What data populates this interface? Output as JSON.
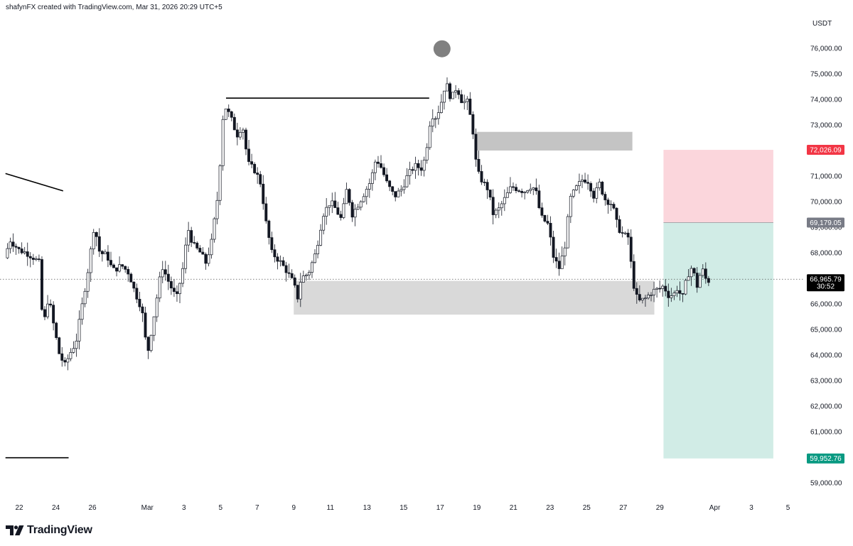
{
  "header": {
    "text": "shafynFX created with TradingView.com, Mar 31, 2026 20:29 UTC+5"
  },
  "footer": {
    "brand": "TradingView"
  },
  "chart_data": {
    "type": "candlestick",
    "currency_label": "USDT",
    "y_ticks": [
      76000,
      75000,
      74000,
      73000,
      72000,
      71000,
      70000,
      69000,
      68000,
      67000,
      66000,
      65000,
      64000,
      63000,
      62000,
      61000,
      59000
    ],
    "y_tick_labels": [
      "76,000.00",
      "75,000.00",
      "74,000.00",
      "73,000.00",
      "72,000.00",
      "71,000.00",
      "70,000.00",
      "69,000.00",
      "68,000.00",
      "67,000.00",
      "66,000.00",
      "65,000.00",
      "64,000.00",
      "63,000.00",
      "62,000.00",
      "61,000.00",
      "59,000.00"
    ],
    "x_ticks": [
      {
        "day": 0,
        "label": "22"
      },
      {
        "day": 2,
        "label": "24"
      },
      {
        "day": 4,
        "label": "26"
      },
      {
        "day": 7,
        "label": "Mar"
      },
      {
        "day": 9,
        "label": "3"
      },
      {
        "day": 11,
        "label": "5"
      },
      {
        "day": 13,
        "label": "7"
      },
      {
        "day": 15,
        "label": "9"
      },
      {
        "day": 17,
        "label": "11"
      },
      {
        "day": 19,
        "label": "13"
      },
      {
        "day": 21,
        "label": "15"
      },
      {
        "day": 23,
        "label": "17"
      },
      {
        "day": 25,
        "label": "19"
      },
      {
        "day": 27,
        "label": "21"
      },
      {
        "day": 29,
        "label": "23"
      },
      {
        "day": 31,
        "label": "25"
      },
      {
        "day": 33,
        "label": "27"
      },
      {
        "day": 35,
        "label": "29"
      },
      {
        "day": 38,
        "label": "Apr"
      },
      {
        "day": 40,
        "label": "3"
      },
      {
        "day": 42,
        "label": "5"
      }
    ],
    "current_price": {
      "value": 66965.79,
      "label": "66,965.79",
      "countdown": "30:52"
    },
    "price_tags": [
      {
        "value": 72026.09,
        "label": "72,026.09",
        "color": "#f23645"
      },
      {
        "value": 69179.05,
        "label": "69,179.05",
        "color": "#787b86"
      },
      {
        "value": 59952.76,
        "label": "59,952.76",
        "color": "#089981"
      }
    ],
    "position": {
      "stop": 72026.09,
      "entry": 69179.05,
      "target": 59952.76,
      "start_day": 35.2,
      "end_day": 41.2,
      "stop_color": "#fbd6dc",
      "target_color": "#d1ece6"
    },
    "zones": [
      {
        "day_from": 15.0,
        "day_to": 34.7,
        "high": 66900,
        "low": 65580,
        "color": "#d9d9d9"
      },
      {
        "day_from": 25.0,
        "day_to": 33.5,
        "high": 72730,
        "low": 72000,
        "color": "#c4c4c4"
      }
    ],
    "lines": [
      {
        "day_from": 11.3,
        "day_to": 22.4,
        "price_from": 74050,
        "price_to": 74050
      },
      {
        "day_from": -0.75,
        "day_to": 2.4,
        "price_from": 71100,
        "price_to": 70420
      },
      {
        "day_from": -0.75,
        "day_to": 2.7,
        "price_from": 59980,
        "price_to": 59980
      }
    ],
    "marker": {
      "day": 23.1,
      "price": 75980,
      "color": "#808080"
    },
    "path": [
      [
        -0.8,
        67800
      ],
      [
        -0.5,
        68500
      ],
      [
        0,
        68100
      ],
      [
        0.4,
        68000
      ],
      [
        0.8,
        67800
      ],
      [
        1.1,
        67600
      ],
      [
        1.3,
        65000
      ],
      [
        1.6,
        66300
      ],
      [
        1.9,
        65100
      ],
      [
        2.2,
        64000
      ],
      [
        2.5,
        63600
      ],
      [
        2.8,
        64100
      ],
      [
        3.1,
        64500
      ],
      [
        3.5,
        66200
      ],
      [
        3.8,
        67500
      ],
      [
        4.1,
        69100
      ],
      [
        4.4,
        68000
      ],
      [
        4.8,
        67900
      ],
      [
        5.1,
        67300
      ],
      [
        5.6,
        67500
      ],
      [
        6.0,
        67200
      ],
      [
        6.3,
        66500
      ],
      [
        6.7,
        65800
      ],
      [
        7.0,
        64000
      ],
      [
        7.4,
        65700
      ],
      [
        7.8,
        67500
      ],
      [
        8.2,
        66800
      ],
      [
        8.6,
        66200
      ],
      [
        9.0,
        67600
      ],
      [
        9.2,
        69000
      ],
      [
        9.5,
        68300
      ],
      [
        9.9,
        68000
      ],
      [
        10.2,
        67600
      ],
      [
        10.5,
        68400
      ],
      [
        10.9,
        70500
      ],
      [
        11.1,
        73200
      ],
      [
        11.3,
        73700
      ],
      [
        11.6,
        73200
      ],
      [
        11.9,
        72600
      ],
      [
        12.2,
        73000
      ],
      [
        12.5,
        71500
      ],
      [
        12.9,
        71200
      ],
      [
        13.2,
        70700
      ],
      [
        13.5,
        69100
      ],
      [
        13.8,
        68000
      ],
      [
        14.2,
        67700
      ],
      [
        14.6,
        67300
      ],
      [
        15.0,
        66800
      ],
      [
        15.2,
        66200
      ],
      [
        15.4,
        67000
      ],
      [
        15.8,
        67200
      ],
      [
        16.2,
        68000
      ],
      [
        16.6,
        69500
      ],
      [
        17.0,
        70000
      ],
      [
        17.3,
        69700
      ],
      [
        17.6,
        69300
      ],
      [
        17.9,
        70500
      ],
      [
        18.2,
        69500
      ],
      [
        18.6,
        70000
      ],
      [
        18.9,
        70400
      ],
      [
        19.2,
        70800
      ],
      [
        19.5,
        71700
      ],
      [
        19.8,
        71300
      ],
      [
        20.1,
        70700
      ],
      [
        20.5,
        70200
      ],
      [
        20.9,
        70500
      ],
      [
        21.2,
        71000
      ],
      [
        21.6,
        71400
      ],
      [
        22.0,
        71300
      ],
      [
        22.2,
        71800
      ],
      [
        22.5,
        73400
      ],
      [
        22.8,
        73300
      ],
      [
        23.1,
        74000
      ],
      [
        23.3,
        74700
      ],
      [
        23.6,
        74000
      ],
      [
        23.9,
        74500
      ],
      [
        24.2,
        73900
      ],
      [
        24.5,
        73900
      ],
      [
        24.8,
        72700
      ],
      [
        25.0,
        71200
      ],
      [
        25.3,
        70800
      ],
      [
        25.6,
        70500
      ],
      [
        25.9,
        69500
      ],
      [
        26.2,
        69700
      ],
      [
        26.6,
        70200
      ],
      [
        26.9,
        70600
      ],
      [
        27.2,
        70500
      ],
      [
        27.6,
        70400
      ],
      [
        27.9,
        70600
      ],
      [
        28.2,
        70500
      ],
      [
        28.5,
        69400
      ],
      [
        28.9,
        69100
      ],
      [
        29.2,
        67800
      ],
      [
        29.5,
        67400
      ],
      [
        29.8,
        68200
      ],
      [
        30.1,
        70100
      ],
      [
        30.4,
        70500
      ],
      [
        30.8,
        70900
      ],
      [
        31.1,
        70800
      ],
      [
        31.4,
        70200
      ],
      [
        31.7,
        70700
      ],
      [
        32.0,
        70100
      ],
      [
        32.4,
        69900
      ],
      [
        32.7,
        69000
      ],
      [
        33.0,
        68700
      ],
      [
        33.3,
        68600
      ],
      [
        33.5,
        67000
      ],
      [
        33.7,
        66300
      ],
      [
        33.9,
        66100
      ],
      [
        34.2,
        66200
      ],
      [
        34.6,
        66500
      ],
      [
        35.0,
        66600
      ],
      [
        35.2,
        66700
      ],
      [
        35.5,
        66300
      ],
      [
        35.8,
        66400
      ],
      [
        36.0,
        66700
      ],
      [
        36.2,
        66100
      ],
      [
        36.5,
        67100
      ],
      [
        36.8,
        67500
      ],
      [
        37.0,
        66600
      ],
      [
        37.3,
        67400
      ],
      [
        37.6,
        66800
      ],
      [
        37.7,
        66965
      ]
    ]
  }
}
